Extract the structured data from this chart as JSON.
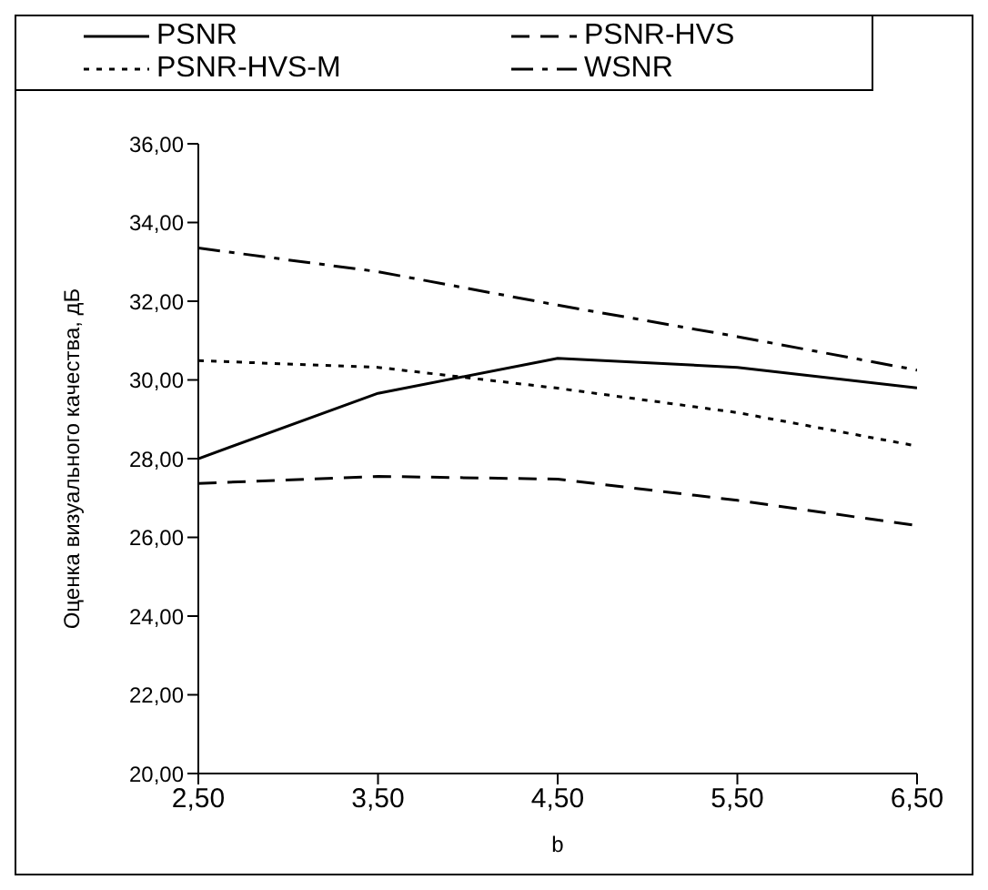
{
  "chart_data": {
    "type": "line",
    "xlabel": "b",
    "ylabel": "Оценка визуального качества, дБ",
    "x": [
      2.5,
      3.5,
      4.5,
      5.5,
      6.5
    ],
    "xlim": [
      2.5,
      6.5
    ],
    "xticks": [
      {
        "value": 2.5,
        "label": "2,50"
      },
      {
        "value": 3.5,
        "label": "3,50"
      },
      {
        "value": 4.5,
        "label": "4,50"
      },
      {
        "value": 5.5,
        "label": "5,50"
      },
      {
        "value": 6.5,
        "label": "6,50"
      }
    ],
    "ylim": [
      20,
      36
    ],
    "yticks": [
      {
        "value": 20,
        "label": "20,00"
      },
      {
        "value": 22,
        "label": "22,00"
      },
      {
        "value": 24,
        "label": "24,00"
      },
      {
        "value": 26,
        "label": "26,00"
      },
      {
        "value": 28,
        "label": "28,00"
      },
      {
        "value": 30,
        "label": "30,00"
      },
      {
        "value": 32,
        "label": "32,00"
      },
      {
        "value": 34,
        "label": "34,00"
      },
      {
        "value": 36,
        "label": "36,00"
      }
    ],
    "grid": false,
    "legend": "top",
    "marker": "none",
    "series": [
      {
        "name": "PSNR",
        "color": "#000000",
        "line_style": "solid",
        "values": [
          28.0,
          29.66,
          30.55,
          30.32,
          29.8
        ]
      },
      {
        "name": "PSNR-HVS",
        "color": "#000000",
        "line_style": "dashed",
        "values": [
          27.37,
          27.55,
          27.48,
          26.94,
          26.3
        ]
      },
      {
        "name": "PSNR-HVS-M",
        "color": "#000000",
        "line_style": "dotted",
        "values": [
          30.49,
          30.32,
          29.79,
          29.17,
          28.32
        ]
      },
      {
        "name": "WSNR",
        "color": "#000000",
        "line_style": "dashdot",
        "values": [
          33.35,
          32.75,
          31.9,
          31.1,
          30.25
        ]
      }
    ]
  }
}
